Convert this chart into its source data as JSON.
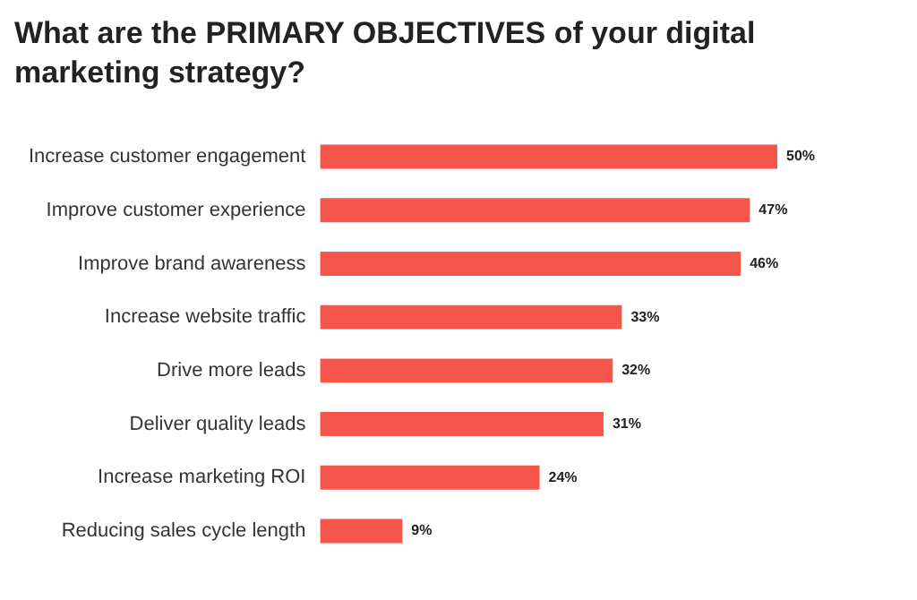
{
  "chart_data": {
    "type": "bar",
    "orientation": "horizontal",
    "title": "What are the PRIMARY OBJECTIVES of your digital marketing strategy?",
    "categories": [
      "Increase customer engagement",
      "Improve customer experience",
      "Improve brand awareness",
      "Increase website traffic",
      "Drive more leads",
      "Deliver quality leads",
      "Increase marketing ROI",
      "Reducing sales cycle length"
    ],
    "values": [
      50,
      47,
      46,
      33,
      32,
      31,
      24,
      9
    ],
    "value_labels": [
      "50%",
      "47%",
      "46%",
      "33%",
      "32%",
      "31%",
      "24%",
      "9%"
    ],
    "color": "#f5554a",
    "grid": false,
    "legend": false
  }
}
